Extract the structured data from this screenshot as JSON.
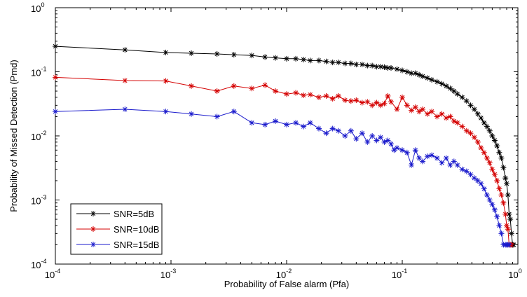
{
  "chart_data": {
    "type": "line",
    "title": "",
    "xlabel": "Probability of False alarm (Pfa)",
    "ylabel": "Probability of Missed Detection (Pmd)",
    "x_scale": "log",
    "y_scale": "log",
    "xlim": [
      0.0001,
      1
    ],
    "ylim": [
      0.0001,
      1
    ],
    "x_ticks": [
      {
        "base": "10",
        "exp": "-4",
        "value": 0.0001
      },
      {
        "base": "10",
        "exp": "-3",
        "value": 0.001
      },
      {
        "base": "10",
        "exp": "-2",
        "value": 0.01
      },
      {
        "base": "10",
        "exp": "-1",
        "value": 0.1
      },
      {
        "base": "10",
        "exp": "0",
        "value": 1
      }
    ],
    "y_ticks": [
      {
        "base": "10",
        "exp": "-4",
        "value": 0.0001
      },
      {
        "base": "10",
        "exp": "-3",
        "value": 0.001
      },
      {
        "base": "10",
        "exp": "-2",
        "value": 0.01
      },
      {
        "base": "10",
        "exp": "-1",
        "value": 0.1
      },
      {
        "base": "10",
        "exp": "0",
        "value": 1
      }
    ],
    "grid": false,
    "legend_position": "bottom-left",
    "series": [
      {
        "name": "SNR=5dB",
        "color": "#000000",
        "marker": "asterisk",
        "x": [
          0.0001,
          0.0004,
          0.0009,
          0.0015,
          0.0025,
          0.0035,
          0.005,
          0.0065,
          0.008,
          0.01,
          0.012,
          0.014,
          0.016,
          0.019,
          0.022,
          0.025,
          0.028,
          0.032,
          0.036,
          0.04,
          0.045,
          0.05,
          0.055,
          0.06,
          0.065,
          0.07,
          0.075,
          0.08,
          0.09,
          0.1,
          0.11,
          0.12,
          0.13,
          0.14,
          0.15,
          0.165,
          0.18,
          0.2,
          0.22,
          0.24,
          0.26,
          0.28,
          0.3,
          0.33,
          0.36,
          0.39,
          0.42,
          0.45,
          0.48,
          0.51,
          0.54,
          0.57,
          0.6,
          0.63,
          0.66,
          0.69,
          0.72,
          0.75,
          0.78,
          0.8,
          0.82,
          0.84,
          0.86,
          0.88,
          0.9,
          0.92
        ],
        "y": [
          0.25,
          0.22,
          0.2,
          0.195,
          0.19,
          0.185,
          0.18,
          0.17,
          0.165,
          0.16,
          0.16,
          0.155,
          0.15,
          0.15,
          0.145,
          0.14,
          0.14,
          0.135,
          0.135,
          0.13,
          0.13,
          0.125,
          0.125,
          0.12,
          0.12,
          0.118,
          0.115,
          0.115,
          0.11,
          0.105,
          0.1,
          0.095,
          0.095,
          0.09,
          0.085,
          0.08,
          0.075,
          0.07,
          0.065,
          0.06,
          0.055,
          0.05,
          0.045,
          0.04,
          0.035,
          0.03,
          0.026,
          0.022,
          0.019,
          0.016,
          0.014,
          0.012,
          0.01,
          0.0085,
          0.007,
          0.0055,
          0.0045,
          0.0032,
          0.0022,
          0.0018,
          0.0012,
          0.0006,
          0.0005,
          0.0003,
          0.0002,
          0.0002
        ]
      },
      {
        "name": "SNR=10dB",
        "color": "#d40000",
        "marker": "asterisk",
        "x": [
          0.0001,
          0.0004,
          0.0009,
          0.0015,
          0.0025,
          0.0035,
          0.005,
          0.0065,
          0.008,
          0.01,
          0.012,
          0.014,
          0.016,
          0.019,
          0.022,
          0.025,
          0.028,
          0.032,
          0.036,
          0.04,
          0.045,
          0.05,
          0.055,
          0.06,
          0.065,
          0.07,
          0.075,
          0.08,
          0.09,
          0.1,
          0.11,
          0.12,
          0.13,
          0.14,
          0.15,
          0.165,
          0.18,
          0.2,
          0.22,
          0.24,
          0.26,
          0.28,
          0.3,
          0.33,
          0.36,
          0.39,
          0.42,
          0.45,
          0.48,
          0.51,
          0.54,
          0.57,
          0.6,
          0.63,
          0.66,
          0.69,
          0.72,
          0.75,
          0.78,
          0.8,
          0.82,
          0.84,
          0.86,
          0.88
        ],
        "y": [
          0.082,
          0.073,
          0.072,
          0.06,
          0.05,
          0.06,
          0.055,
          0.062,
          0.05,
          0.045,
          0.047,
          0.043,
          0.044,
          0.04,
          0.042,
          0.038,
          0.042,
          0.036,
          0.035,
          0.036,
          0.033,
          0.034,
          0.03,
          0.033,
          0.03,
          0.032,
          0.042,
          0.034,
          0.026,
          0.04,
          0.03,
          0.025,
          0.028,
          0.024,
          0.026,
          0.022,
          0.024,
          0.02,
          0.022,
          0.019,
          0.02,
          0.017,
          0.016,
          0.014,
          0.012,
          0.011,
          0.0095,
          0.008,
          0.0065,
          0.0055,
          0.0045,
          0.0038,
          0.003,
          0.0025,
          0.002,
          0.0015,
          0.0012,
          0.0009,
          0.0006,
          0.0004,
          0.00035,
          0.0002,
          0.0002,
          0.0002
        ]
      },
      {
        "name": "SNR=15dB",
        "color": "#1a1acc",
        "marker": "asterisk",
        "x": [
          0.0001,
          0.0004,
          0.0009,
          0.0015,
          0.0025,
          0.0035,
          0.005,
          0.0065,
          0.008,
          0.01,
          0.012,
          0.014,
          0.016,
          0.019,
          0.022,
          0.025,
          0.028,
          0.032,
          0.036,
          0.04,
          0.045,
          0.05,
          0.055,
          0.06,
          0.065,
          0.07,
          0.075,
          0.08,
          0.085,
          0.09,
          0.1,
          0.11,
          0.12,
          0.13,
          0.14,
          0.15,
          0.165,
          0.18,
          0.2,
          0.22,
          0.24,
          0.26,
          0.28,
          0.3,
          0.33,
          0.36,
          0.39,
          0.42,
          0.45,
          0.48,
          0.51,
          0.54,
          0.57,
          0.6,
          0.63,
          0.66,
          0.69,
          0.72,
          0.75,
          0.78,
          0.8,
          0.82,
          0.84
        ],
        "y": [
          0.024,
          0.026,
          0.024,
          0.022,
          0.02,
          0.024,
          0.016,
          0.015,
          0.017,
          0.015,
          0.016,
          0.014,
          0.016,
          0.013,
          0.011,
          0.013,
          0.012,
          0.01,
          0.012,
          0.009,
          0.011,
          0.008,
          0.01,
          0.0085,
          0.0095,
          0.008,
          0.0085,
          0.0075,
          0.006,
          0.0065,
          0.006,
          0.0055,
          0.0035,
          0.006,
          0.0045,
          0.004,
          0.0048,
          0.005,
          0.0045,
          0.0038,
          0.0045,
          0.0035,
          0.004,
          0.0035,
          0.003,
          0.0028,
          0.0025,
          0.0022,
          0.002,
          0.0018,
          0.0015,
          0.0012,
          0.001,
          0.00085,
          0.0007,
          0.00055,
          0.0004,
          0.0003,
          0.0002,
          0.0002,
          0.0002,
          0.0002,
          0.0002
        ]
      }
    ]
  }
}
